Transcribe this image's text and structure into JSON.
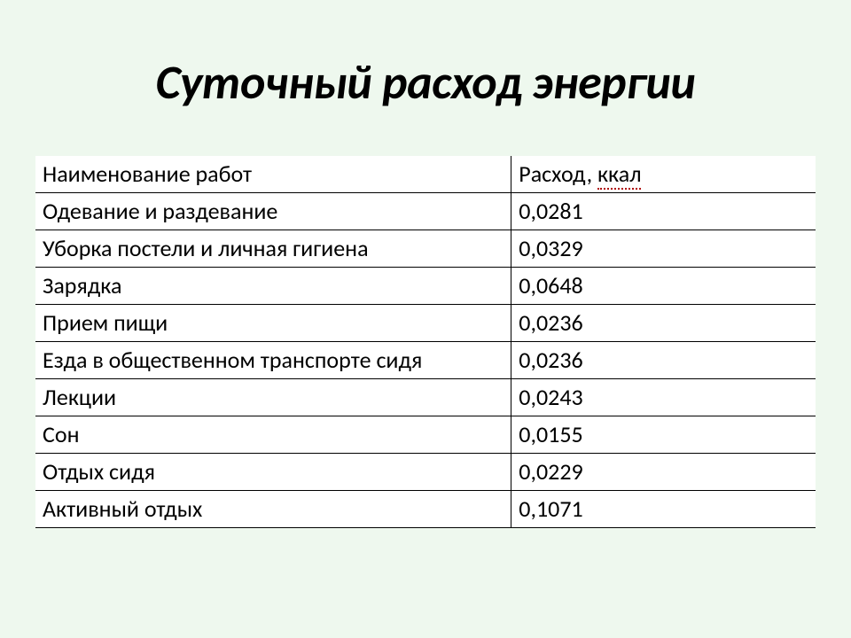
{
  "title": "Суточный расход энергии",
  "table": {
    "type": "table",
    "background_color": "#ffffff",
    "border_color": "#000000",
    "font_size_pt": 20,
    "column_widths_pct": [
      61,
      39
    ],
    "columns": [
      {
        "label": "Наименование работ",
        "align": "left"
      },
      {
        "label": "Расход, ",
        "underlined_word": "ккал",
        "align": "left"
      }
    ],
    "rows": [
      {
        "name": "Одевание и раздевание",
        "value": "0,0281"
      },
      {
        "name": "Уборка постели и личная гигиена",
        "value": "0,0329"
      },
      {
        "name": "Зарядка",
        "value": "0,0648"
      },
      {
        "name": "Прием пищи",
        "value": "0,0236"
      },
      {
        "name": "Езда в общественном транспорте сидя",
        "value": "0,0236"
      },
      {
        "name": "Лекции",
        "value": "0,0243"
      },
      {
        "name": "Сон",
        "value": "0,0155"
      },
      {
        "name": "Отдых сидя",
        "value": "0,0229"
      },
      {
        "name": "Активный отдых",
        "value": "0,1071"
      }
    ]
  },
  "colors": {
    "slide_background": "#eef8ee",
    "text": "#000000",
    "spellcheck_underline": "#b00000"
  },
  "typography": {
    "title_fontsize_pt": 40,
    "title_weight": "bold",
    "title_style": "italic",
    "body_fontsize_pt": 20,
    "font_family": "Calibri"
  }
}
